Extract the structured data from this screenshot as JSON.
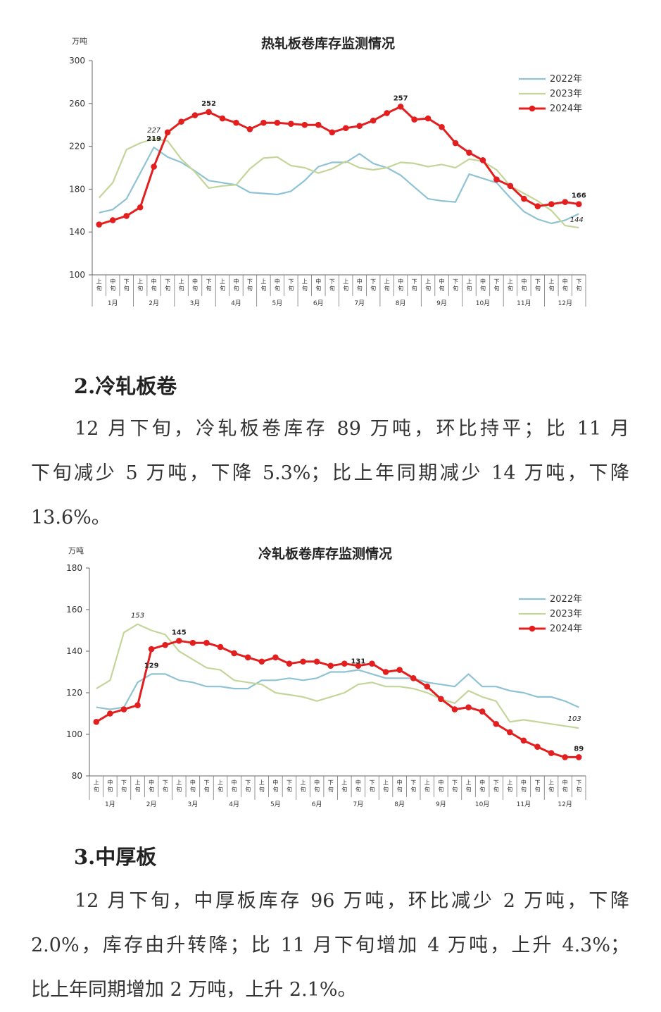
{
  "charts": [
    {
      "title": "热轧板卷库存监测情况",
      "unit": "万吨",
      "yticks": [
        "100",
        "140",
        "180",
        "220",
        "260",
        "300"
      ],
      "ylim": [
        100,
        300
      ],
      "xsub": [
        "上旬",
        "中旬",
        "下旬"
      ],
      "months": [
        "1月",
        "2月",
        "3月",
        "4月",
        "5月",
        "6月",
        "7月",
        "8月",
        "9月",
        "10月",
        "11月",
        "12月"
      ],
      "legend": [
        "2022年",
        "2023年",
        "2024年"
      ],
      "colors": {
        "s2022": "#8fc3d4",
        "s2023": "#c4d59a",
        "s2024": "#e31e1e"
      },
      "annotations": [
        {
          "text": "227",
          "idx": 4,
          "series": "2023",
          "italic": true
        },
        {
          "text": "219",
          "idx": 4,
          "series": "2022",
          "italic": false
        },
        {
          "text": "252",
          "idx": 8,
          "series": "2024",
          "italic": false
        },
        {
          "text": "257",
          "idx": 22,
          "series": "2024",
          "italic": false
        },
        {
          "text": "166",
          "idx": 35,
          "series": "2024",
          "italic": false
        },
        {
          "text": "144",
          "idx": 35,
          "series": "2023",
          "italic": true
        }
      ]
    },
    {
      "title": "冷轧板卷库存监测情况",
      "unit": "万吨",
      "yticks": [
        "80",
        "100",
        "120",
        "140",
        "160",
        "180"
      ],
      "ylim": [
        80,
        180
      ],
      "xsub": [
        "上旬",
        "中旬",
        "下旬"
      ],
      "months": [
        "1月",
        "2月",
        "3月",
        "4月",
        "5月",
        "6月",
        "7月",
        "8月",
        "9月",
        "10月",
        "11月",
        "12月"
      ],
      "legend": [
        "2022年",
        "2023年",
        "2024年"
      ],
      "colors": {
        "s2022": "#8fc3d4",
        "s2023": "#c4d59a",
        "s2024": "#e31e1e"
      },
      "annotations": [
        {
          "text": "153",
          "idx": 3,
          "series": "2023",
          "italic": true
        },
        {
          "text": "129",
          "idx": 4,
          "series": "2022",
          "italic": false
        },
        {
          "text": "145",
          "idx": 6,
          "series": "2024",
          "italic": false
        },
        {
          "text": "131",
          "idx": 19,
          "series": "2022",
          "italic": false
        },
        {
          "text": "103",
          "idx": 35,
          "series": "2023",
          "italic": true
        },
        {
          "text": "89",
          "idx": 35,
          "series": "2024",
          "italic": false
        }
      ]
    }
  ],
  "chart_data": [
    {
      "type": "line",
      "title": "热轧板卷库存监测情况",
      "ylabel": "万吨",
      "ylim": [
        100,
        300
      ],
      "x": [
        "1月上旬",
        "1月中旬",
        "1月下旬",
        "2月上旬",
        "2月中旬",
        "2月下旬",
        "3月上旬",
        "3月中旬",
        "3月下旬",
        "4月上旬",
        "4月中旬",
        "4月下旬",
        "5月上旬",
        "5月中旬",
        "5月下旬",
        "6月上旬",
        "6月中旬",
        "6月下旬",
        "7月上旬",
        "7月中旬",
        "7月下旬",
        "8月上旬",
        "8月中旬",
        "8月下旬",
        "9月上旬",
        "9月中旬",
        "9月下旬",
        "10月上旬",
        "10月中旬",
        "10月下旬",
        "11月上旬",
        "11月中旬",
        "11月下旬",
        "12月上旬",
        "12月中旬",
        "12月下旬"
      ],
      "series": [
        {
          "name": "2022年",
          "values": [
            158,
            161,
            171,
            195,
            219,
            210,
            205,
            197,
            188,
            186,
            184,
            177,
            176,
            175,
            178,
            188,
            201,
            205,
            205,
            213,
            204,
            200,
            193,
            182,
            171,
            169,
            168,
            194,
            190,
            186,
            172,
            159,
            152,
            148,
            151,
            157
          ]
        },
        {
          "name": "2023年",
          "values": [
            172,
            186,
            217,
            223,
            227,
            225,
            208,
            196,
            181,
            183,
            184,
            199,
            209,
            210,
            202,
            200,
            195,
            199,
            206,
            200,
            198,
            200,
            205,
            204,
            201,
            203,
            200,
            208,
            206,
            198,
            183,
            176,
            169,
            160,
            146,
            144
          ]
        },
        {
          "name": "2024年",
          "values": [
            147,
            151,
            155,
            163,
            201,
            233,
            243,
            249,
            252,
            246,
            242,
            236,
            242,
            242,
            241,
            240,
            240,
            233,
            237,
            239,
            244,
            251,
            257,
            245,
            246,
            238,
            223,
            214,
            207,
            189,
            183,
            171,
            164,
            166,
            168,
            166
          ]
        }
      ],
      "grid": false,
      "legend": "top-right"
    },
    {
      "type": "line",
      "title": "冷轧板卷库存监测情况",
      "ylabel": "万吨",
      "ylim": [
        80,
        180
      ],
      "x": [
        "1月上旬",
        "1月中旬",
        "1月下旬",
        "2月上旬",
        "2月中旬",
        "2月下旬",
        "3月上旬",
        "3月中旬",
        "3月下旬",
        "4月上旬",
        "4月中旬",
        "4月下旬",
        "5月上旬",
        "5月中旬",
        "5月下旬",
        "6月上旬",
        "6月中旬",
        "6月下旬",
        "7月上旬",
        "7月中旬",
        "7月下旬",
        "8月上旬",
        "8月中旬",
        "8月下旬",
        "9月上旬",
        "9月中旬",
        "9月下旬",
        "10月上旬",
        "10月中旬",
        "10月下旬",
        "11月上旬",
        "11月中旬",
        "11月下旬",
        "12月上旬",
        "12月中旬",
        "12月下旬"
      ],
      "series": [
        {
          "name": "2022年",
          "values": [
            113,
            112,
            113,
            125,
            129,
            129,
            126,
            125,
            123,
            123,
            122,
            122,
            126,
            126,
            127,
            126,
            127,
            130,
            130,
            131,
            129,
            127,
            127,
            127,
            125,
            124,
            123,
            129,
            123,
            123,
            121,
            120,
            118,
            118,
            116,
            113
          ]
        },
        {
          "name": "2023年",
          "values": [
            122,
            126,
            149,
            153,
            150,
            148,
            140,
            136,
            132,
            131,
            126,
            125,
            124,
            120,
            119,
            118,
            116,
            118,
            120,
            124,
            125,
            123,
            123,
            122,
            120,
            117,
            115,
            121,
            118,
            116,
            106,
            107,
            106,
            105,
            104,
            103
          ]
        },
        {
          "name": "2024年",
          "values": [
            106,
            110,
            112,
            114,
            141,
            143,
            145,
            144,
            144,
            142,
            139,
            137,
            135,
            137,
            134,
            135,
            135,
            133,
            134,
            133,
            134,
            130,
            131,
            127,
            123,
            117,
            112,
            113,
            111,
            105,
            101,
            97,
            94,
            91,
            89,
            89
          ]
        }
      ],
      "grid": false,
      "legend": "top-right"
    }
  ],
  "sections": [
    {
      "heading": "2.冷轧板卷",
      "lines": [
        "12 月下旬，冷轧板卷库存 89 万吨，环比持平；比 11 月",
        "下旬减少 5 万吨，下降 5.3%；比上年同期减少 14 万吨，下降",
        "13.6%。"
      ]
    },
    {
      "heading": "3.中厚板",
      "lines": [
        "12 月下旬，中厚板库存 96 万吨，环比减少 2 万吨，下降",
        "2.0%，库存由升转降；比 11 月下旬增加 4 万吨，上升 4.3%；",
        "比上年同期增加 2 万吨，上升 2.1%。"
      ]
    }
  ]
}
